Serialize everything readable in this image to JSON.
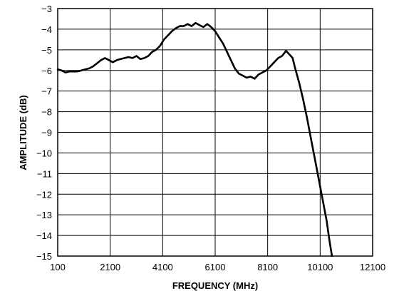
{
  "chart_data": {
    "type": "line",
    "title": "",
    "xlabel": "FREQUENCY (MHz)",
    "ylabel": "AMPLITUDE (dB)",
    "xlim": [
      100,
      12100
    ],
    "ylim": [
      -15,
      -3
    ],
    "x_ticks": [
      "100",
      "2100",
      "4100",
      "6100",
      "8100",
      "10100",
      "12100"
    ],
    "y_ticks": [
      "−3",
      "−4",
      "−5",
      "−6",
      "−7",
      "−8",
      "−9",
      "−10",
      "−11",
      "−12",
      "−13",
      "−14",
      "−15"
    ],
    "grid": true,
    "series": [
      {
        "x": [
          100,
          250,
          400,
          550,
          700,
          850,
          1000,
          1150,
          1300,
          1450,
          1600,
          1750,
          1900,
          2050,
          2200,
          2350,
          2500,
          2650,
          2800,
          2950,
          3100,
          3250,
          3400,
          3550,
          3700,
          3850,
          4000,
          4150,
          4300,
          4450,
          4600,
          4750,
          4900,
          5050,
          5200,
          5350,
          5500,
          5650,
          5800,
          5950,
          6100,
          6250,
          6400,
          6550,
          6700,
          6850,
          7000,
          7150,
          7300,
          7450,
          7600,
          7750,
          7900,
          8050,
          8200,
          8350,
          8500,
          8650,
          8800,
          8950,
          9050,
          9150,
          9300,
          9450,
          9600,
          9750,
          9900,
          10050,
          10200,
          10350,
          10450,
          10550
        ],
        "y": [
          -5.95,
          -6.0,
          -6.1,
          -6.05,
          -6.05,
          -6.05,
          -6.0,
          -5.95,
          -5.9,
          -5.8,
          -5.65,
          -5.5,
          -5.4,
          -5.5,
          -5.6,
          -5.5,
          -5.45,
          -5.4,
          -5.35,
          -5.4,
          -5.3,
          -5.45,
          -5.4,
          -5.3,
          -5.1,
          -5.0,
          -4.8,
          -4.5,
          -4.3,
          -4.1,
          -3.95,
          -3.85,
          -3.85,
          -3.75,
          -3.85,
          -3.7,
          -3.8,
          -3.9,
          -3.75,
          -3.9,
          -4.1,
          -4.4,
          -4.7,
          -5.1,
          -5.5,
          -5.9,
          -6.15,
          -6.25,
          -6.35,
          -6.3,
          -6.4,
          -6.2,
          -6.1,
          -6.0,
          -5.8,
          -5.6,
          -5.4,
          -5.3,
          -5.05,
          -5.25,
          -5.4,
          -5.9,
          -6.6,
          -7.4,
          -8.3,
          -9.3,
          -10.3,
          -11.3,
          -12.3,
          -13.3,
          -14.2,
          -15.0
        ]
      }
    ]
  }
}
